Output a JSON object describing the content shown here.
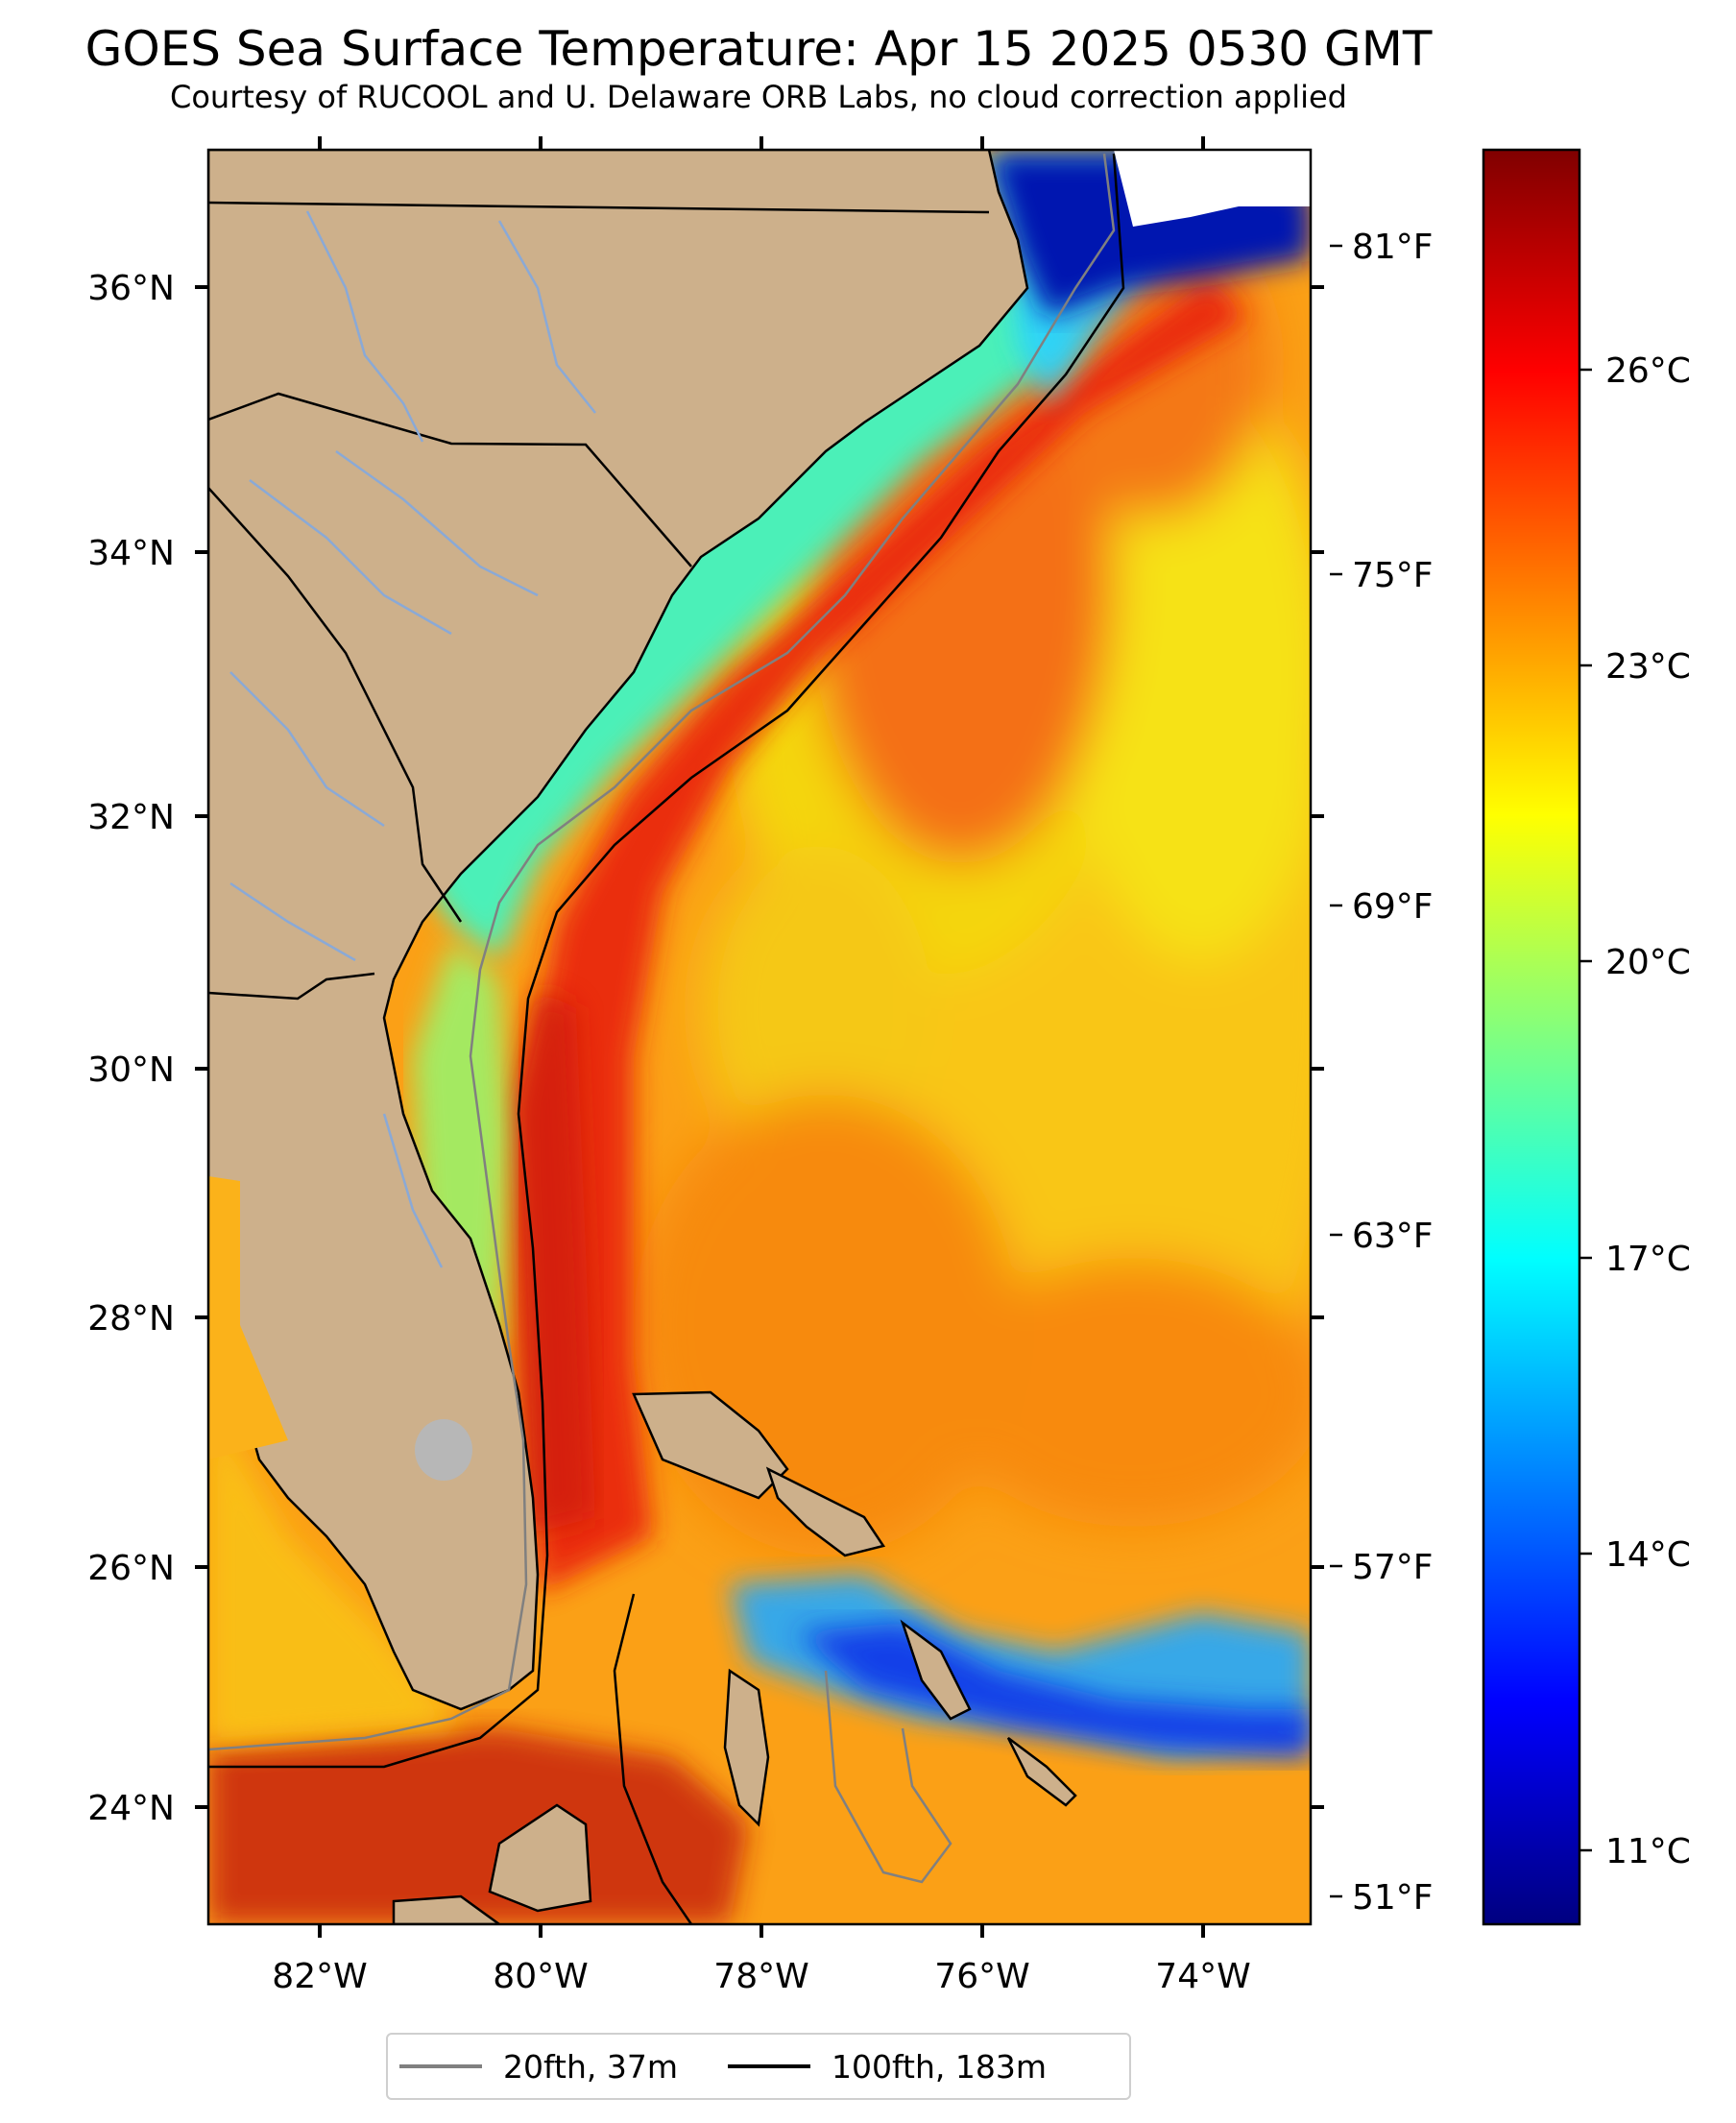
{
  "title": "GOES Sea Surface Temperature: Apr 15 2025 0530 GMT",
  "subtitle": "Courtesy of RUCOOL and U. Delaware ORB Labs, no cloud correction applied",
  "map": {
    "lon_ticks": [
      "82°W",
      "80°W",
      "78°W",
      "76°W",
      "74°W"
    ],
    "lat_ticks": [
      "36°N",
      "34°N",
      "32°N",
      "30°N",
      "28°N",
      "26°N",
      "24°N"
    ],
    "fahrenheit_ticks": [
      "81°F",
      "75°F",
      "69°F",
      "63°F",
      "57°F",
      "51°F"
    ],
    "extent": {
      "lon_min": -83.0,
      "lon_max": -73.0,
      "lat_min": 23.1,
      "lat_max": 37.0
    },
    "land_color": "#cdb08b",
    "state_line_color": "#000000",
    "river_color": "#8aa9d6"
  },
  "colorbar": {
    "ticks": [
      "26°C",
      "23°C",
      "20°C",
      "17°C",
      "14°C",
      "11°C"
    ],
    "colormap": "jet",
    "colors": [
      "#000080",
      "#0000ff",
      "#0080ff",
      "#00ffff",
      "#80ff80",
      "#ffff00",
      "#ff8000",
      "#ff0000",
      "#800000"
    ]
  },
  "legend": {
    "items": [
      {
        "label": "20fth, 37m",
        "color": "#808080"
      },
      {
        "label": "100fth, 183m",
        "color": "#000000"
      }
    ]
  }
}
